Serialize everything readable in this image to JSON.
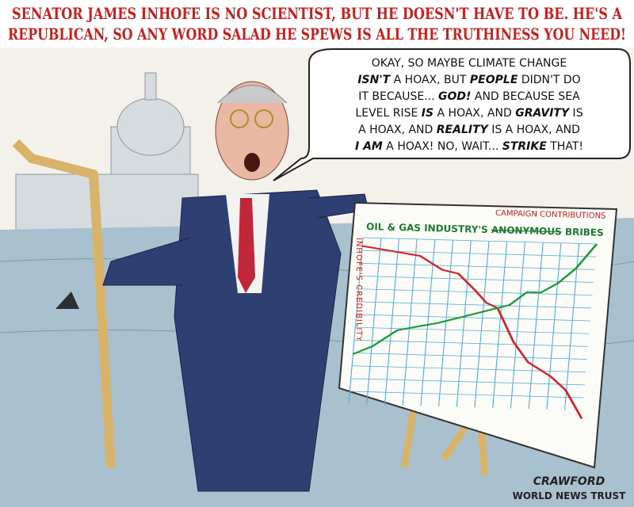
{
  "caption": [
    "SENATOR JAMES INHOFE IS NO SCIENTIST, BUT HE DOESN'T HAVE TO BE. HE'S A",
    "REPUBLICAN, SO ANY WORD SALAD HE SPEWS IS ALL THE TRUTHINESS YOU NEED!"
  ],
  "speech_bubble": {
    "lines": [
      [
        "OKAY, SO MAYBE CLIMATE CHANGE"
      ],
      [
        {
          "text": "ISN'T",
          "em": true
        },
        " A HOAX, BUT ",
        {
          "text": "PEOPLE",
          "em": true
        },
        " DIDN'T DO"
      ],
      [
        "IT BECAUSE... ",
        {
          "text": "GOD!",
          "em": true
        },
        " AND BECAUSE SEA"
      ],
      [
        "LEVEL RISE ",
        {
          "text": "IS",
          "em": true
        },
        " A HOAX, AND ",
        {
          "text": "GRAVITY",
          "em": true
        },
        " IS"
      ],
      [
        "A HOAX, AND ",
        {
          "text": "REALITY",
          "em": true
        },
        " IS A HOAX, AND"
      ],
      [
        {
          "text": "I AM",
          "em": true
        },
        " A HOAX! NO, WAIT... ",
        {
          "text": "STRIKE",
          "em": true
        },
        " THAT!"
      ]
    ]
  },
  "easel_chart": {
    "title_prefix": "OIL & GAS INDUSTRY'S",
    "struck_word": "ANONYMOUS",
    "title_suffix": "BRIBES",
    "inserted_text": "CAMPAIGN CONTRIBUTIONS",
    "y_label": "INHOFE'S CREDIBILITY"
  },
  "signature": {
    "artist": "CRAWFORD",
    "outlet": "WORLD NEWS TRUST"
  }
}
